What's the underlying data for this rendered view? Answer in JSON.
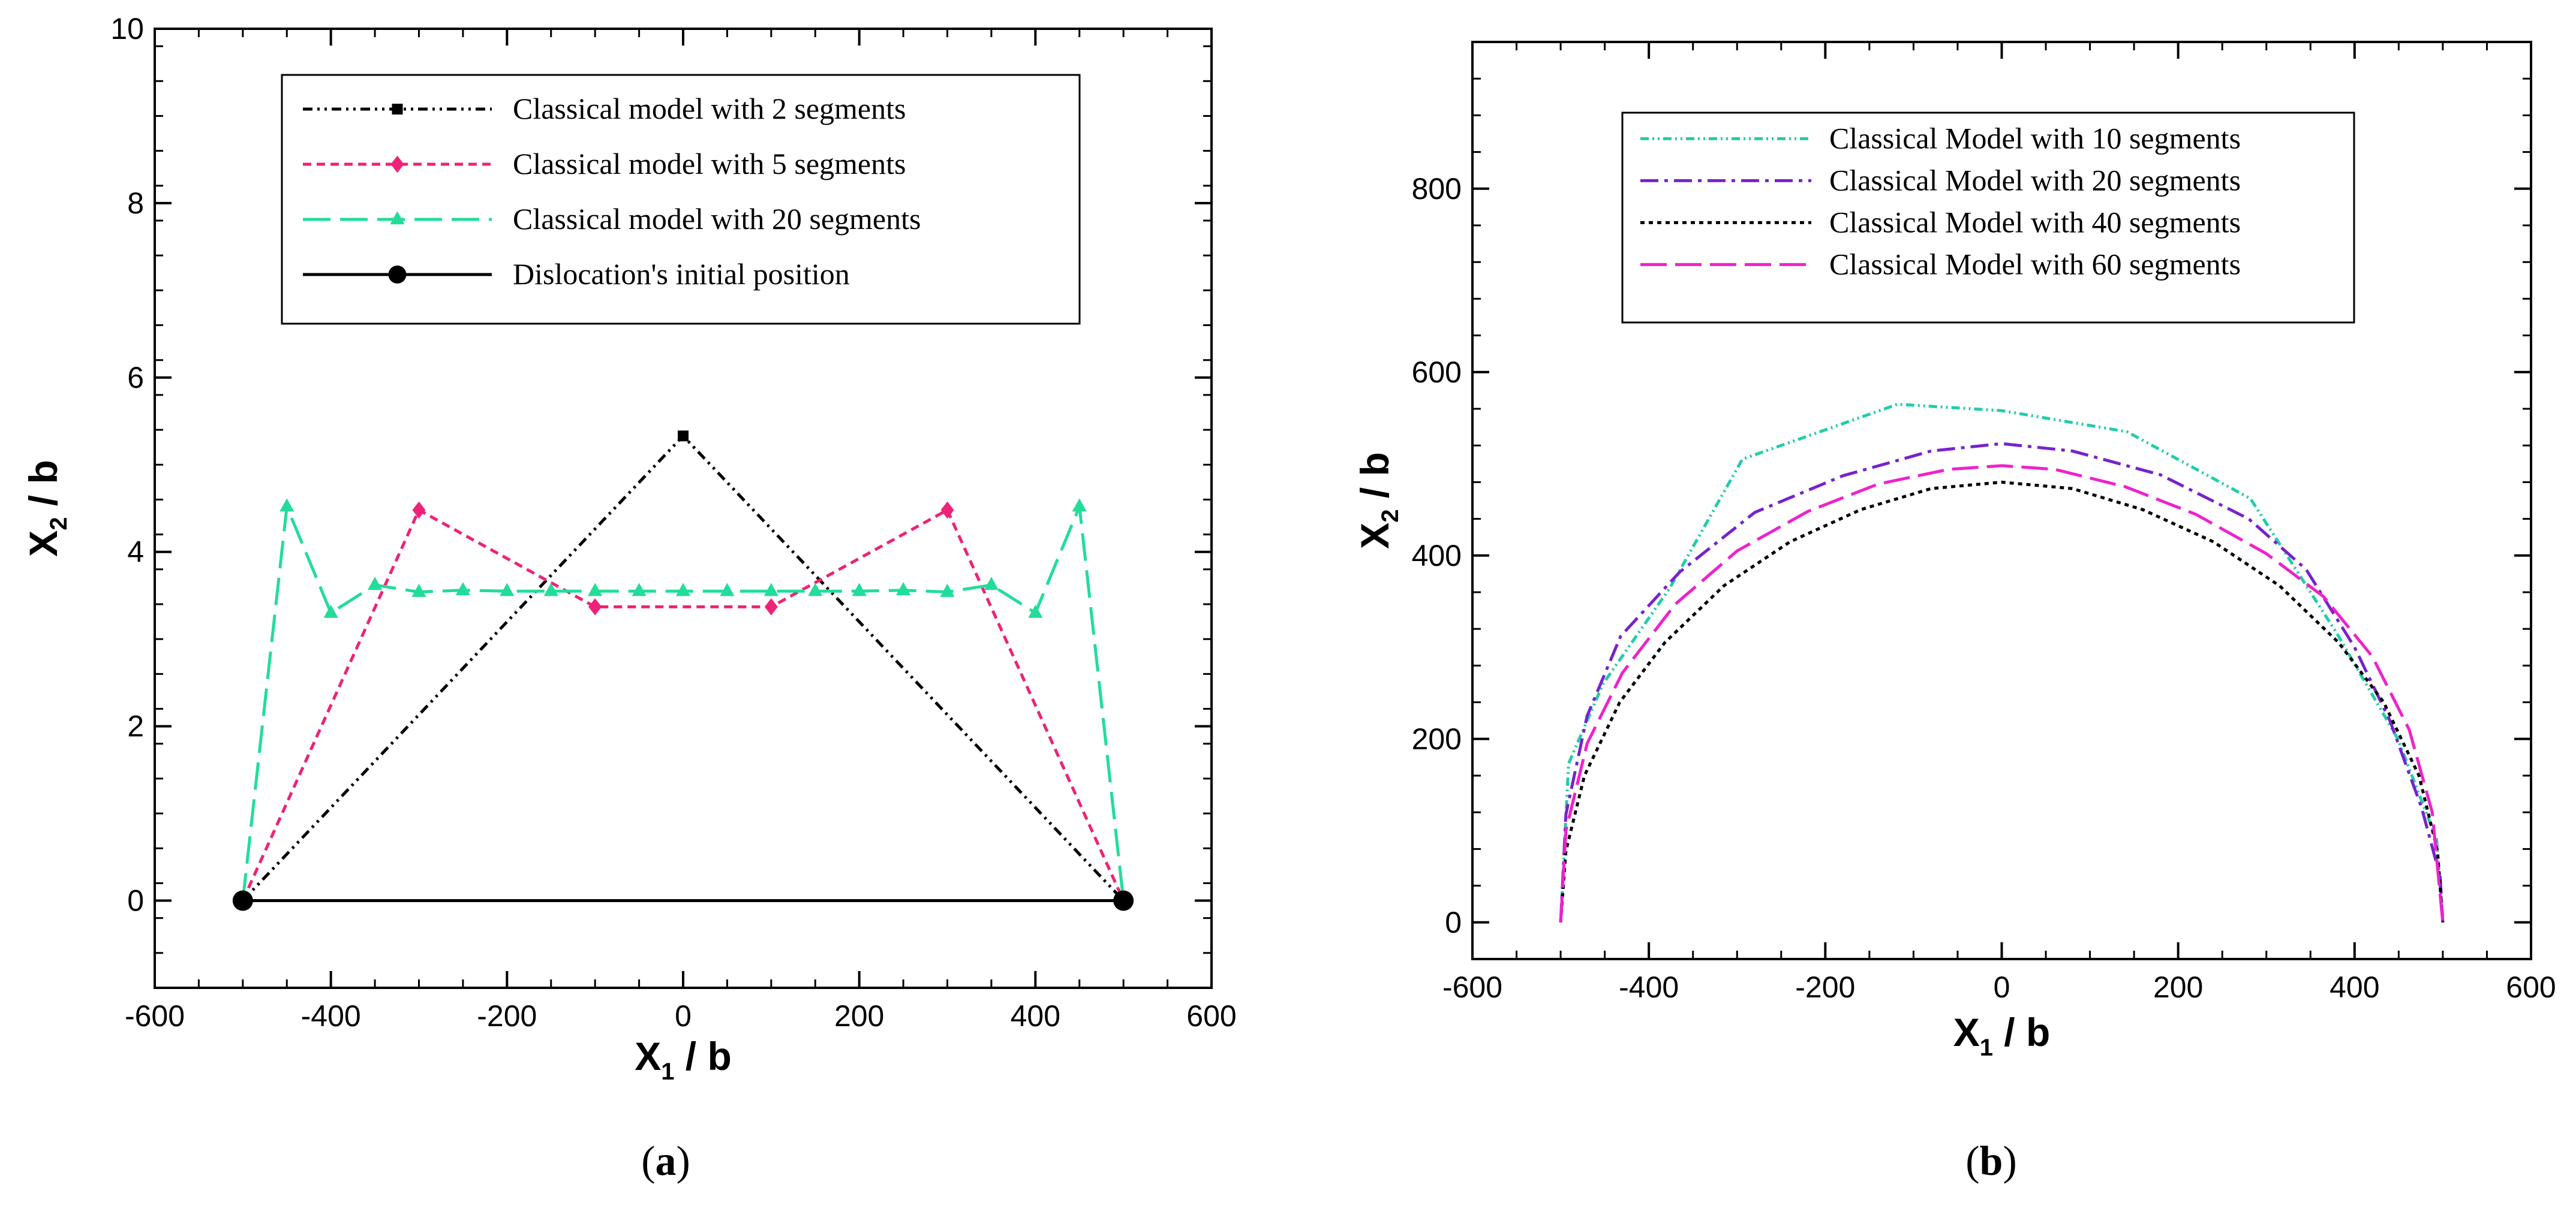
{
  "chart_data": [
    {
      "type": "line",
      "caption_letter": "a",
      "xlabel": {
        "main": "X",
        "sub": "1",
        "rest": " / b"
      },
      "ylabel": {
        "main": "X",
        "sub": "2",
        "rest": " / b"
      },
      "xlim": [
        -600,
        600
      ],
      "ylim": [
        -1,
        10
      ],
      "xticks": [
        -600,
        -400,
        -200,
        0,
        200,
        400,
        600
      ],
      "yticks": [
        0,
        2,
        4,
        6,
        8,
        10
      ],
      "xminor": 50,
      "yminor": 0.4,
      "legend_position": "top-center",
      "series": [
        {
          "name": "Classical model with  2 segments",
          "color": "#000000",
          "dash": "16 8 4 8 4 8",
          "marker": "square",
          "x": [
            -500,
            0,
            500
          ],
          "y": [
            0,
            5.33,
            0
          ]
        },
        {
          "name": "Classical model with  5 segments",
          "color": "#ee2277",
          "dash": "14 9",
          "marker": "diamond",
          "x": [
            -500,
            -300,
            -100,
            100,
            300,
            500
          ],
          "y": [
            0,
            4.48,
            3.37,
            3.37,
            4.48,
            0
          ]
        },
        {
          "name": "Classical model with 20 segments",
          "color": "#22dd99",
          "dash": "46 16",
          "marker": "triangle",
          "x": [
            -500,
            -450,
            -400,
            -350,
            -300,
            -250,
            -200,
            -150,
            -100,
            -50,
            0,
            50,
            100,
            150,
            200,
            250,
            300,
            350,
            400,
            450,
            500
          ],
          "y": [
            0,
            4.52,
            3.3,
            3.62,
            3.54,
            3.56,
            3.55,
            3.55,
            3.55,
            3.55,
            3.55,
            3.55,
            3.55,
            3.55,
            3.55,
            3.56,
            3.54,
            3.62,
            3.3,
            4.52,
            0
          ]
        },
        {
          "name": "Dislocation's initial position",
          "color": "#000000",
          "dash": "",
          "marker": "circle-ends",
          "x": [
            -500,
            500
          ],
          "y": [
            0,
            0
          ]
        }
      ]
    },
    {
      "type": "line",
      "caption_letter": "b",
      "xlabel": {
        "main": "X",
        "sub": "1",
        "rest": " / b"
      },
      "ylabel": {
        "main": "X",
        "sub": "2",
        "rest": " / b"
      },
      "xlim": [
        -600,
        600
      ],
      "ylim": [
        -40,
        960
      ],
      "xticks": [
        -600,
        -400,
        -200,
        0,
        200,
        400,
        600
      ],
      "yticks": [
        0,
        200,
        400,
        600,
        800
      ],
      "xminor": 50,
      "yminor": 40,
      "legend_position": "top-center",
      "series": [
        {
          "name": "Classical Model with 10 segments",
          "color": "#22ccaa",
          "dash": "14 6 3 6 3 6",
          "x": [
            -500,
            -491,
            -452,
            -376,
            -294,
            -118,
            0,
            142,
            282,
            380,
            449,
            493,
            500
          ],
          "y": [
            0,
            173,
            260,
            365,
            505,
            565,
            558,
            535,
            462,
            315,
            200,
            90,
            0
          ]
        },
        {
          "name": "Classical Model with 20 segments",
          "color": "#7722cc",
          "dash": "30 10 6 10",
          "x": [
            -500,
            -494,
            -470,
            -432,
            -365,
            -280,
            -180,
            -80,
            0,
            80,
            180,
            280,
            345,
            400,
            440,
            476,
            497,
            500
          ],
          "y": [
            0,
            118,
            225,
            312,
            382,
            447,
            487,
            514,
            522,
            514,
            488,
            440,
            385,
            300,
            220,
            125,
            50,
            0
          ]
        },
        {
          "name": "Classical Model with 40 segments",
          "color": "#000000",
          "dash": "7 7",
          "x": [
            -500,
            -494,
            -473,
            -433,
            -382,
            -315,
            -240,
            -160,
            -80,
            0,
            80,
            160,
            240,
            315,
            382,
            433,
            473,
            494,
            500
          ],
          "y": [
            0,
            78,
            160,
            240,
            305,
            367,
            415,
            450,
            473,
            480,
            473,
            450,
            415,
            367,
            305,
            240,
            160,
            78,
            0
          ]
        },
        {
          "name": "Classical Model with 60 segments",
          "color": "#ee22cc",
          "dash": "44 14",
          "x": [
            -500,
            -494,
            -470,
            -430,
            -370,
            -300,
            -220,
            -140,
            -60,
            0,
            60,
            140,
            220,
            300,
            365,
            420,
            462,
            488,
            500
          ],
          "y": [
            0,
            100,
            195,
            272,
            347,
            405,
            448,
            478,
            494,
            498,
            494,
            475,
            445,
            402,
            355,
            290,
            210,
            120,
            0
          ]
        }
      ]
    }
  ]
}
